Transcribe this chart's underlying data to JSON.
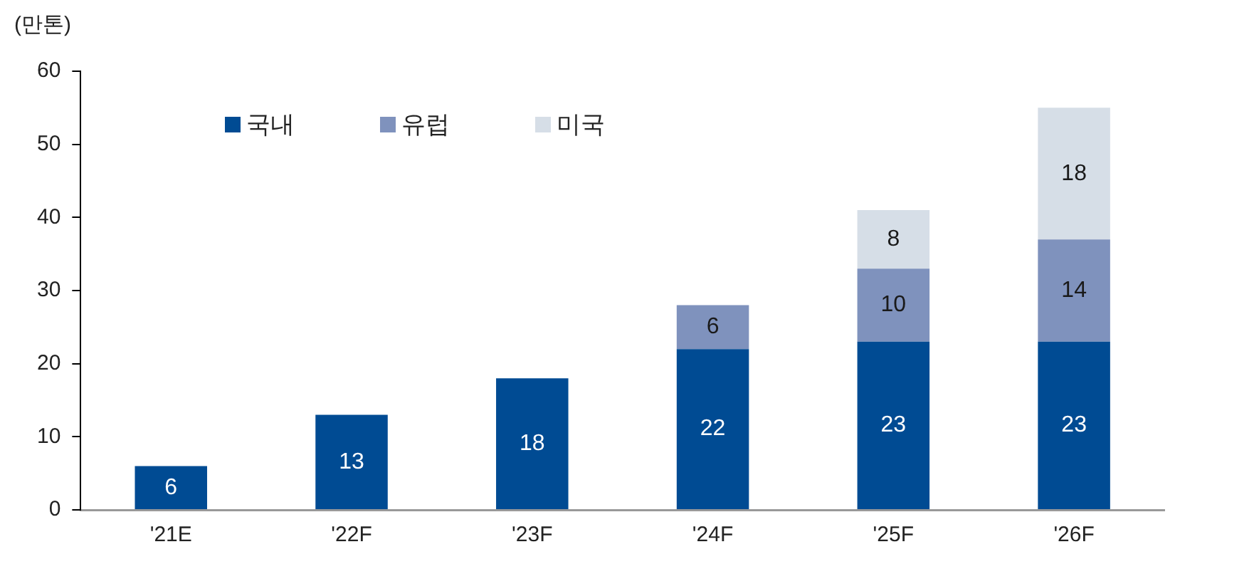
{
  "chart_data": {
    "type": "bar",
    "ylabel": "(만톤)",
    "categories": [
      "'21E",
      "'22F",
      "'23F",
      "'24F",
      "'25F",
      "'26F"
    ],
    "stacked": true,
    "data_labels": true,
    "legend": "top left",
    "grid": false,
    "ylim": [
      0,
      60
    ],
    "yticks": [
      0,
      10,
      20,
      30,
      40,
      50,
      60
    ],
    "series": [
      {
        "name": "국내",
        "color": "#004b93",
        "values": [
          6,
          13,
          18,
          22,
          23,
          23
        ]
      },
      {
        "name": "유럽",
        "color": "#7f92bd",
        "values": [
          null,
          null,
          null,
          6,
          10,
          14
        ]
      },
      {
        "name": "미국",
        "color": "#d6dee7",
        "values": [
          null,
          null,
          null,
          null,
          8,
          18
        ]
      }
    ]
  }
}
